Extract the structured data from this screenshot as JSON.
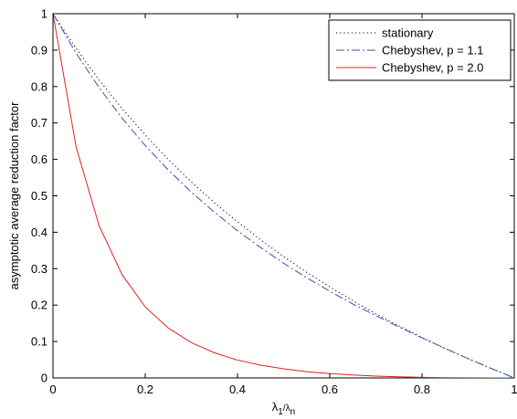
{
  "chart_data": {
    "type": "line",
    "title": "",
    "xlabel": "λ1/λn",
    "ylabel": "asymptotic average reduction factor",
    "xlim": [
      0,
      1
    ],
    "ylim": [
      0,
      1
    ],
    "xticks": [
      0,
      0.2,
      0.4,
      0.6,
      0.8,
      1
    ],
    "xtick_labels": [
      "0",
      "0.2",
      "0.4",
      "0.6",
      "0.8",
      "1"
    ],
    "yticks": [
      0,
      0.1,
      0.2,
      0.3,
      0.4,
      0.5,
      0.6,
      0.7,
      0.8,
      0.9,
      1
    ],
    "ytick_labels": [
      "0",
      "0.1",
      "0.2",
      "0.3",
      "0.4",
      "0.5",
      "0.6",
      "0.7",
      "0.8",
      "0.9",
      "1"
    ],
    "grid": false,
    "legend_position": "top-right",
    "x": [
      0,
      0.05,
      0.1,
      0.15,
      0.2,
      0.25,
      0.3,
      0.35,
      0.4,
      0.45,
      0.5,
      0.55,
      0.6,
      0.65,
      0.7,
      0.75,
      0.8,
      0.85,
      0.9,
      0.95,
      1
    ],
    "series": [
      {
        "name": "stationary",
        "color": "#000000",
        "style": "dotted",
        "values": [
          1.0,
          0.905,
          0.818,
          0.739,
          0.667,
          0.6,
          0.538,
          0.481,
          0.429,
          0.379,
          0.333,
          0.29,
          0.25,
          0.212,
          0.176,
          0.143,
          0.111,
          0.081,
          0.053,
          0.026,
          0.0
        ]
      },
      {
        "name": "Chebyshev, p = 1.1",
        "color": "#3355aa",
        "style": "dashdot",
        "values": [
          1.0,
          0.892,
          0.797,
          0.713,
          0.638,
          0.571,
          0.51,
          0.455,
          0.404,
          0.358,
          0.315,
          0.275,
          0.238,
          0.203,
          0.171,
          0.14,
          0.11,
          0.081,
          0.053,
          0.026,
          0.0
        ]
      },
      {
        "name": "Chebyshev, p = 2.0",
        "color": "#dd2222",
        "style": "solid",
        "values": [
          1.0,
          0.635,
          0.418,
          0.283,
          0.195,
          0.137,
          0.097,
          0.069,
          0.049,
          0.035,
          0.025,
          0.017,
          0.012,
          0.008,
          0.005,
          0.003,
          0.0015,
          0.0007,
          0.0002,
          3e-05,
          0.0
        ]
      }
    ]
  }
}
